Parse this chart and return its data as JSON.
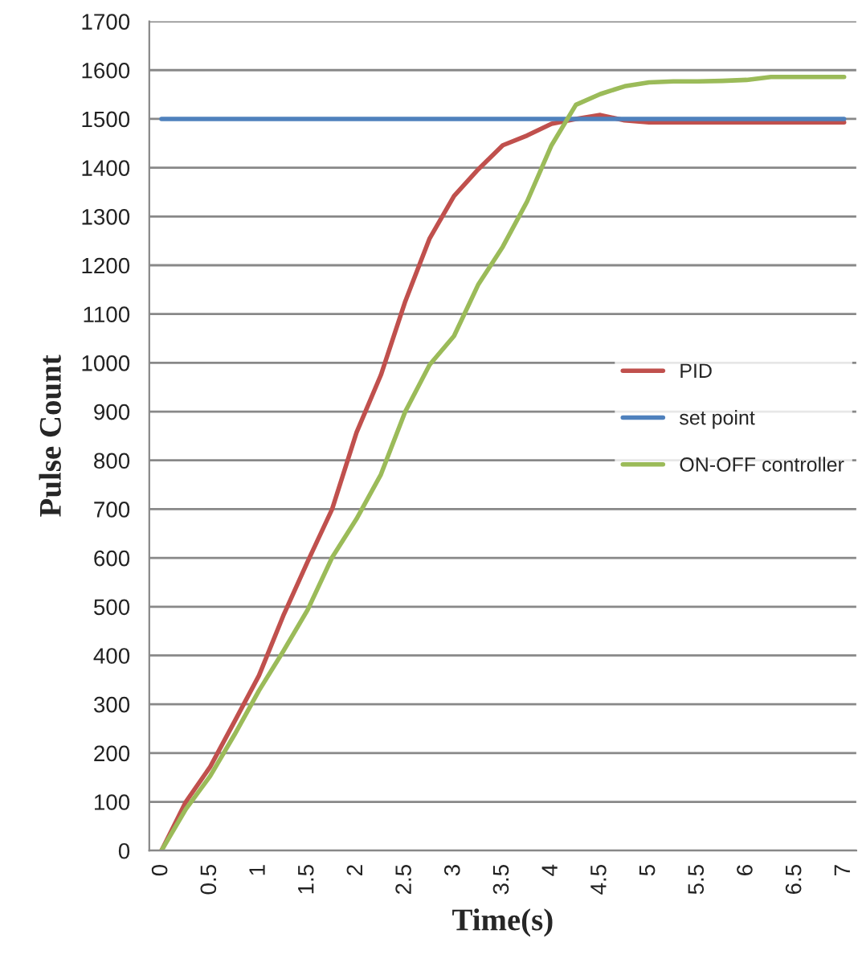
{
  "chart_data": {
    "type": "line",
    "xlabel": "Time(s)",
    "ylabel": "Pulse Count",
    "categories": [
      "0",
      null,
      "0.5",
      null,
      "1",
      null,
      "1.5",
      null,
      "2",
      null,
      "2.5",
      null,
      "3",
      null,
      "3.5",
      null,
      "4",
      null,
      "4.5",
      null,
      "5",
      null,
      "5.5",
      null,
      "6",
      null,
      "6.5",
      null,
      "7"
    ],
    "series": [
      {
        "name": "PID",
        "color": "#c0504d",
        "values": [
          0,
          100,
          172,
          265,
          359,
          482,
          593,
          700,
          857,
          975,
          1126,
          1255,
          1342,
          1397,
          1446,
          1466,
          1490,
          1500,
          1508,
          1497,
          1493,
          1493,
          1493,
          1493,
          1493,
          1493,
          1493,
          1493,
          1493
        ]
      },
      {
        "name": "set point",
        "color": "#4f81bd",
        "values": [
          1500,
          1500,
          1500,
          1500,
          1500,
          1500,
          1500,
          1500,
          1500,
          1500,
          1500,
          1500,
          1500,
          1500,
          1500,
          1500,
          1500,
          1500,
          1500,
          1500,
          1500,
          1500,
          1500,
          1500,
          1500,
          1500,
          1500,
          1500,
          1500
        ]
      },
      {
        "name": "ON-OFF controller",
        "color": "#9bbb59",
        "values": [
          0,
          85,
          153,
          238,
          328,
          409,
          494,
          601,
          680,
          771,
          900,
          996,
          1055,
          1161,
          1238,
          1331,
          1446,
          1529,
          1551,
          1567,
          1575,
          1577,
          1577,
          1578,
          1580,
          1586,
          1586,
          1586,
          1586
        ]
      }
    ],
    "ylim": [
      0,
      1700
    ],
    "yticks": [
      0,
      100,
      200,
      300,
      400,
      500,
      600,
      700,
      800,
      900,
      1000,
      1100,
      1200,
      1300,
      1400,
      1500,
      1600,
      1700
    ],
    "grid": "y",
    "legend": "right",
    "line_style": "solid"
  }
}
